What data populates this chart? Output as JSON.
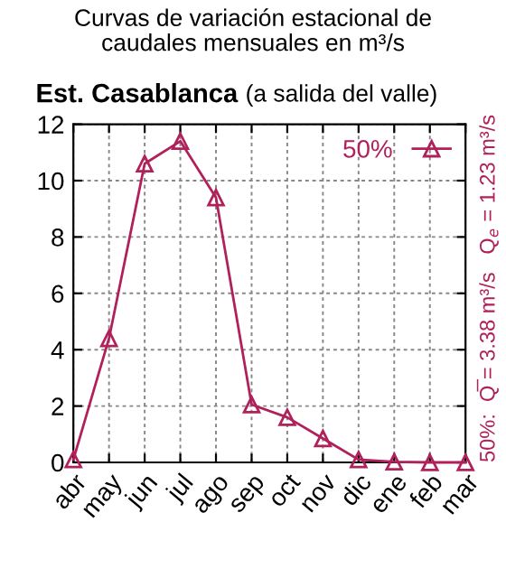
{
  "chart_data": {
    "type": "line",
    "title": "Curvas de variación estacional de\ncaudales mensuales en m³/s",
    "subtitle": "Est. Casablanca",
    "annotations": [
      "(a salida del valle)",
      "50%:  Q̅ = 3.38 m³/s   Q$_{e}$ = 1.23 m³/s"
    ],
    "categories": [
      "abr",
      "may",
      "jun",
      "jul",
      "ago",
      "sep",
      "oct",
      "nov",
      "dic",
      "ene",
      "feb",
      "mar"
    ],
    "series": [
      {
        "name": "50%",
        "color": "#b0205a",
        "values": [
          0.1,
          4.4,
          10.6,
          11.4,
          9.4,
          2.05,
          1.6,
          0.85,
          0.1,
          0.02,
          0,
          0
        ]
      }
    ],
    "ylim": [
      0,
      12
    ],
    "yticks": [
      0,
      2,
      4,
      6,
      8,
      10,
      12
    ],
    "grid": true,
    "legend": "top right",
    "marker": "triangle",
    "line_style": "solid"
  }
}
